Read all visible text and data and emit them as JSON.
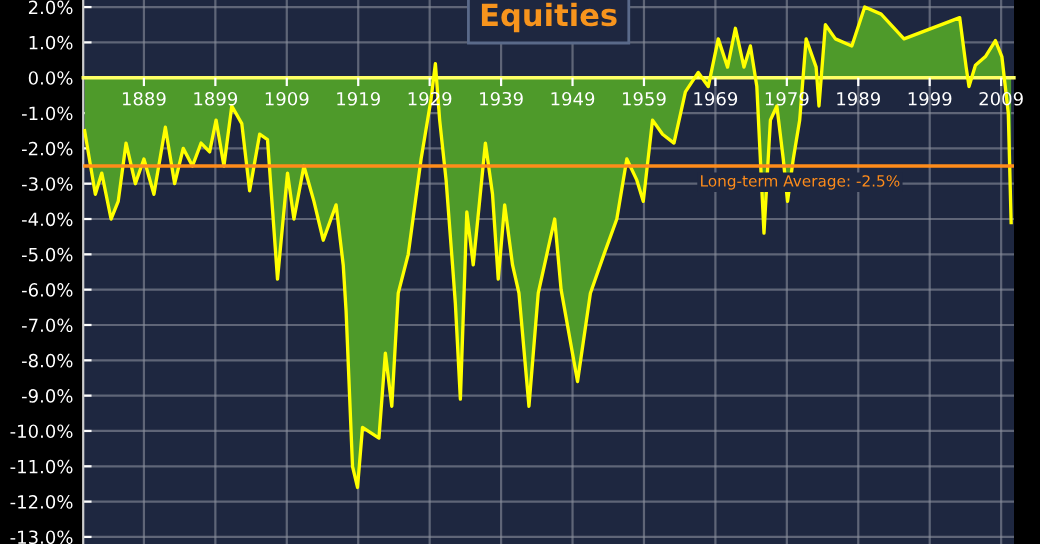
{
  "chart_data": {
    "type": "area",
    "title": "Equities",
    "x": [
      1880.7,
      1882.2,
      1883.1,
      1884.4,
      1885.4,
      1886.5,
      1887.8,
      1889.0,
      1890.4,
      1892.0,
      1893.3,
      1894.5,
      1895.8,
      1897.0,
      1898.2,
      1899.1,
      1900.2,
      1901.3,
      1902.7,
      1903.8,
      1905.2,
      1906.3,
      1907.7,
      1909.1,
      1910.0,
      1911.4,
      1912.8,
      1914.1,
      1915.9,
      1916.9,
      1917.3,
      1918.2,
      1918.9,
      1919.6,
      1920.5,
      1921.9,
      1922.8,
      1923.7,
      1924.6,
      1926.0,
      1927.8,
      1929.2,
      1929.8,
      1930.4,
      1931.3,
      1932.2,
      1932.6,
      1932.8,
      1933.3,
      1933.9,
      1934.2,
      1935.1,
      1936.8,
      1937.8,
      1938.6,
      1939.5,
      1940.6,
      1941.5,
      1942.9,
      1944.2,
      1946.5,
      1947.4,
      1949.7,
      1951.5,
      1953.4,
      1955.2,
      1956.6,
      1958.0,
      1958.9,
      1960.2,
      1961.6,
      1963.2,
      1964.8,
      1966.6,
      1968.0,
      1969.4,
      1970.7,
      1971.8,
      1973.0,
      1973.9,
      1974.8,
      1975.8,
      1976.7,
      1977.6,
      1978.5,
      1979.1,
      1979.9,
      1980.8,
      1981.7,
      1983.1,
      1983.5,
      1984.4,
      1985.8,
      1987.2,
      1988.1,
      1989.9,
      1992.2,
      1993.6,
      1995.4,
      1997.2,
      2000.9,
      2003.2,
      2004.1,
      2004.5,
      2005.4,
      2006.8,
      2008.2,
      2009.1,
      2010.0,
      2010.4
    ],
    "series": [
      {
        "color": "#4e9a2a",
        "values": [
          -1.5,
          -3.3,
          -2.7,
          -4.0,
          -3.5,
          -1.85,
          -3.0,
          -2.3,
          -3.3,
          -1.4,
          -3.0,
          -2.0,
          -2.5,
          -1.85,
          -2.1,
          -1.2,
          -2.5,
          -0.8,
          -1.3,
          -3.2,
          -1.6,
          -1.75,
          -5.7,
          -2.7,
          -4.0,
          -2.5,
          -3.5,
          -4.6,
          -3.6,
          -5.3,
          -6.6,
          -11.0,
          -11.6,
          -9.9,
          null,
          -10.2,
          -7.8,
          -9.3,
          -6.1,
          -5.0,
          -2.3,
          -0.6,
          0.4,
          -1.2,
          -2.9,
          -5.3,
          -6.4,
          null,
          -9.1,
          -5.6,
          -3.8,
          -5.3,
          -1.85,
          -3.3,
          -5.7,
          -3.6,
          -5.3,
          -6.1,
          -9.3,
          -6.1,
          -4.0,
          -6.0,
          -8.6,
          -6.1,
          -5.0,
          -4.0,
          -2.3,
          -2.9,
          -3.5,
          -1.2,
          -1.6,
          -1.85,
          -0.4,
          0.15,
          -0.25,
          1.1,
          0.3,
          1.4,
          0.3,
          0.9,
          -0.25,
          -4.4,
          -1.2,
          -0.8,
          -2.3,
          -3.5,
          -2.3,
          -1.2,
          1.1,
          0.3,
          -0.8,
          1.5,
          1.1,
          null,
          0.9,
          2.0,
          1.8,
          null,
          1.1,
          null,
          null,
          1.7,
          0.3,
          -0.25,
          0.35,
          0.6,
          1.05,
          0.6,
          -1.0,
          -4.1
        ]
      }
    ],
    "xlim": [
      1880.5,
      2010.8
    ],
    "ylim": [
      -13.2,
      2.2
    ],
    "xticks": [
      1889,
      1899,
      1909,
      1919,
      1929,
      1939,
      1949,
      1959,
      1969,
      1979,
      1989,
      1999,
      2009
    ],
    "yticks": [
      {
        "value": 2,
        "label": "2.0%"
      },
      {
        "value": 1,
        "label": "1.0%"
      },
      {
        "value": 0,
        "label": "0.0%"
      },
      {
        "value": -1,
        "label": "-1.0%"
      },
      {
        "value": -2,
        "label": "-2.0%"
      },
      {
        "value": -3,
        "label": "-3.0%"
      },
      {
        "value": -4,
        "label": "-4.0%"
      },
      {
        "value": -5,
        "label": "-5.0%"
      },
      {
        "value": -6,
        "label": "-6.0%"
      },
      {
        "value": -7,
        "label": "-7.0%"
      },
      {
        "value": -8,
        "label": "-8.0%"
      },
      {
        "value": -9,
        "label": "-9.0%"
      },
      {
        "value": -10,
        "label": "-10.0%"
      },
      {
        "value": -11,
        "label": "-11.0%"
      },
      {
        "value": -12,
        "label": "-12.0%"
      },
      {
        "value": -13,
        "label": "-13.0%"
      }
    ],
    "ref_lines": [
      {
        "axis": "y",
        "value": -2.5,
        "label": "Long-term Average: -2.5%",
        "color": "#ff8c1a"
      }
    ],
    "grid": true
  }
}
